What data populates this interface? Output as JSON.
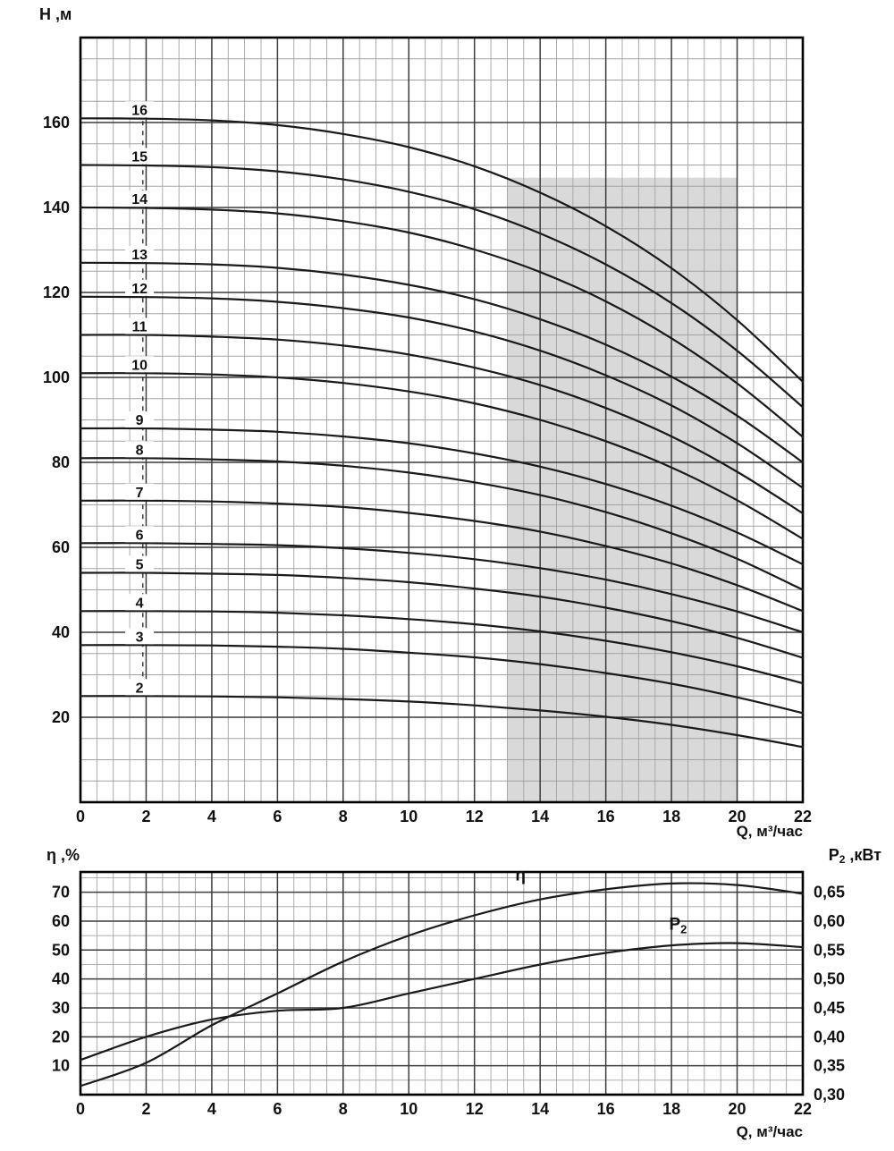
{
  "top_chart": {
    "ylabel": "H ,м",
    "xlabel": "Q, м³/час"
  },
  "bottom_chart": {
    "ylabel_left": "η ,%",
    "ylabel_right_main": "P",
    "ylabel_right_sub": "2",
    "ylabel_right_rest": " ,кВт",
    "xlabel": "Q, м³/час"
  },
  "chart_data": [
    {
      "type": "line",
      "title": "",
      "xlabel": "Q, м³/час",
      "ylabel": "H ,м",
      "xlim": [
        0,
        22
      ],
      "ylim": [
        0,
        180
      ],
      "grid": true,
      "x_major_ticks": [
        0,
        2,
        4,
        6,
        8,
        10,
        12,
        14,
        16,
        18,
        20,
        22
      ],
      "y_major_ticks": [
        20,
        40,
        60,
        80,
        100,
        120,
        140,
        160
      ],
      "x_minor_step": 0.5,
      "y_minor_step": 5,
      "shaded_region": {
        "x": [
          13,
          20
        ],
        "y": [
          0,
          147
        ],
        "color": "#d9d9d9"
      },
      "curve_color": "#1a1a1a",
      "label_x": 1.8,
      "dashed_label_line": {
        "x": 1.9,
        "y": [
          25,
          161
        ]
      },
      "x": [
        0,
        2,
        4,
        6,
        8,
        10,
        12,
        14,
        16,
        18,
        20,
        22
      ],
      "series": [
        {
          "name": "16",
          "values": [
            161,
            160.9,
            160.5,
            159.4,
            157.3,
            154.2,
            149.7,
            143.5,
            135.6,
            125.7,
            113.5,
            99
          ]
        },
        {
          "name": "15",
          "values": [
            150,
            149.9,
            149.5,
            148.5,
            146.6,
            143.7,
            139.6,
            133.9,
            126.6,
            117.5,
            106.3,
            93
          ]
        },
        {
          "name": "14",
          "values": [
            140,
            139.9,
            139.5,
            138.6,
            136.8,
            134.1,
            130.1,
            124.8,
            117.9,
            109.2,
            98.6,
            86
          ]
        },
        {
          "name": "13",
          "values": [
            127,
            126.9,
            126.6,
            125.8,
            124.2,
            121.8,
            118.4,
            113.7,
            107.7,
            100.2,
            91,
            80
          ]
        },
        {
          "name": "12",
          "values": [
            119,
            118.9,
            118.6,
            117.8,
            116.3,
            114.1,
            110.8,
            106.3,
            100.5,
            93.4,
            84.5,
            74
          ]
        },
        {
          "name": "11",
          "values": [
            110,
            110,
            109.6,
            108.9,
            107.5,
            105.4,
            102.3,
            98.2,
            92.8,
            86.1,
            77.8,
            68
          ]
        },
        {
          "name": "10",
          "values": [
            101,
            101,
            100.7,
            100,
            98.7,
            96.7,
            93.9,
            90,
            85,
            78.8,
            71.1,
            62
          ]
        },
        {
          "name": "9",
          "values": [
            88,
            88,
            87.7,
            87.2,
            86.1,
            84.5,
            82.1,
            79,
            74.9,
            69.8,
            63.5,
            56
          ]
        },
        {
          "name": "8",
          "values": [
            81,
            81,
            80.7,
            80.2,
            79.2,
            77.6,
            75.3,
            72.3,
            68.3,
            63.3,
            57.3,
            50
          ]
        },
        {
          "name": "7",
          "values": [
            71,
            71,
            70.8,
            70.3,
            69.5,
            68.1,
            66.2,
            63.7,
            60.3,
            56.2,
            51.1,
            45
          ]
        },
        {
          "name": "6",
          "values": [
            61,
            61,
            60.8,
            60.5,
            59.8,
            58.7,
            57.2,
            55.1,
            52.4,
            49,
            44.9,
            40
          ]
        },
        {
          "name": "5",
          "values": [
            54,
            54,
            53.8,
            53.5,
            52.8,
            51.8,
            50.3,
            48.4,
            45.8,
            42.6,
            38.7,
            34
          ]
        },
        {
          "name": "4",
          "values": [
            45,
            45,
            44.9,
            44.6,
            44,
            43.1,
            41.9,
            40.2,
            38,
            35.3,
            32,
            28
          ]
        },
        {
          "name": "3",
          "values": [
            37,
            37,
            36.9,
            36.6,
            36.1,
            35.2,
            34.1,
            32.5,
            30.4,
            27.9,
            24.7,
            21
          ]
        },
        {
          "name": "2",
          "values": [
            25,
            25,
            24.9,
            24.7,
            24.3,
            23.7,
            22.8,
            21.6,
            20.1,
            18.2,
            15.8,
            13
          ]
        }
      ]
    },
    {
      "type": "line",
      "title": "",
      "xlabel": "Q, м³/час",
      "ylabel_left": "η ,%",
      "ylabel_right": "P2 ,кВт",
      "xlim": [
        0,
        22
      ],
      "ylim_left": [
        0,
        77
      ],
      "ylim_right": [
        0.3,
        0.685
      ],
      "grid": true,
      "x_major_ticks": [
        0,
        2,
        4,
        6,
        8,
        10,
        12,
        14,
        16,
        18,
        20,
        22
      ],
      "y_left_ticks": [
        10,
        20,
        30,
        40,
        50,
        60,
        70
      ],
      "y_right_ticks": [
        0.3,
        0.35,
        0.4,
        0.45,
        0.5,
        0.55,
        0.6,
        0.65
      ],
      "y_right_tick_labels": [
        "0,30",
        "0,35",
        "0,40",
        "0,45",
        "0,50",
        "0,55",
        "0,60",
        "0,65"
      ],
      "x_minor_step": 0.5,
      "y_minor_step": 5,
      "curve_color": "#1a1a1a",
      "x": [
        0,
        2,
        4,
        6,
        8,
        10,
        12,
        14,
        16,
        18,
        20,
        22
      ],
      "series": [
        {
          "name": "η",
          "axis": "left",
          "label": {
            "main": "η",
            "sub": ""
          },
          "label_pos": {
            "x": 13.4,
            "y": 74
          },
          "values": [
            3,
            11,
            24,
            35,
            46,
            55,
            62,
            67.5,
            71,
            73,
            72.5,
            69.5
          ]
        },
        {
          "name": "P2",
          "axis": "right",
          "label": {
            "main": "P",
            "sub": "2"
          },
          "label_pos": {
            "x": 18.2,
            "y": 57
          },
          "values": [
            0.36,
            0.4,
            0.43,
            0.445,
            0.45,
            0.475,
            0.5,
            0.525,
            0.545,
            0.558,
            0.562,
            0.555
          ]
        }
      ]
    }
  ]
}
